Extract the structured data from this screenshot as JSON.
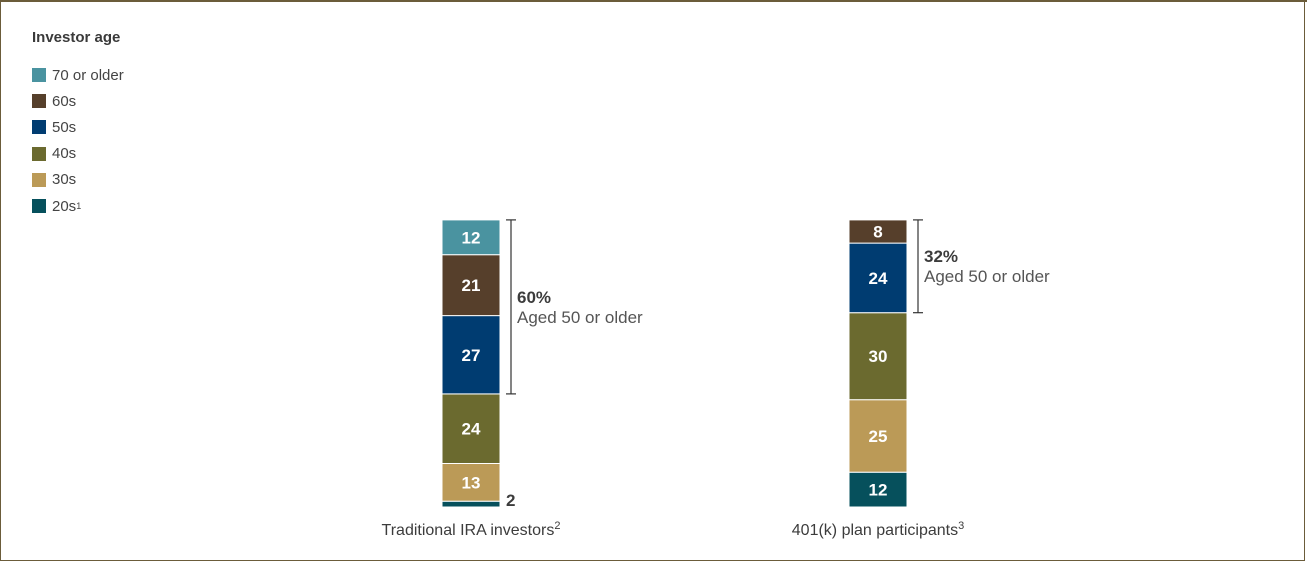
{
  "chart_data": {
    "type": "bar",
    "stacked": true,
    "unit": "%",
    "legend_title": "Investor age",
    "legend_placement": "top-left",
    "series": [
      {
        "name": "70 or older",
        "color": "#4a93a0",
        "values": [
          12,
          0
        ]
      },
      {
        "name": "60s",
        "color": "#563f2b",
        "values": [
          21,
          8
        ]
      },
      {
        "name": "50s",
        "color": "#003c71",
        "values": [
          27,
          24
        ]
      },
      {
        "name": "40s",
        "color": "#6b6a2f",
        "values": [
          24,
          30
        ]
      },
      {
        "name": "30s",
        "color": "#bb9a57",
        "values": [
          13,
          25
        ]
      },
      {
        "name": "20s",
        "color": "#06505c",
        "values": [
          2,
          12
        ],
        "legend_sup": "1"
      }
    ],
    "categories": [
      {
        "label": "Traditional IRA investors",
        "sup": "2"
      },
      {
        "label": "401(k) plan participants",
        "sup": "3"
      }
    ],
    "annotations": [
      {
        "category": 0,
        "from_series": "70 or older",
        "to_series": "50s",
        "pct": "60%",
        "text": "Aged 50 or older"
      },
      {
        "category": 1,
        "from_series": "60s",
        "to_series": "50s",
        "pct": "32%",
        "text": "Aged 50 or older"
      }
    ],
    "ylim": [
      0,
      100
    ],
    "grid": false
  }
}
